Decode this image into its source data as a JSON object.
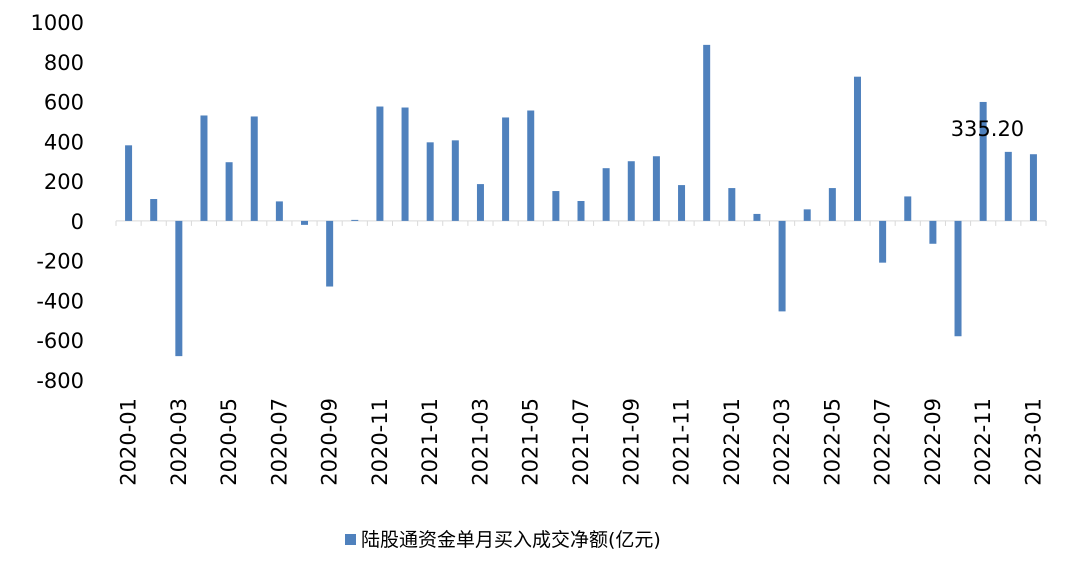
{
  "chart_data": {
    "type": "bar",
    "title": "",
    "xlabel": "",
    "ylabel": "",
    "ylim": [
      -800,
      1000
    ],
    "yticks": [
      "1000",
      "800",
      "600",
      "400",
      "200",
      "0",
      "-200",
      "-400",
      "-600",
      "-800"
    ],
    "grid": false,
    "legend_position": "bottom",
    "bar_color": "#4F81BD",
    "categories": [
      "2020-01",
      "2020-02",
      "2020-03",
      "2020-04",
      "2020-05",
      "2020-06",
      "2020-07",
      "2020-08",
      "2020-09",
      "2020-10",
      "2020-11",
      "2020-12",
      "2021-01",
      "2021-02",
      "2021-03",
      "2021-04",
      "2021-05",
      "2021-06",
      "2021-07",
      "2021-08",
      "2021-09",
      "2021-10",
      "2021-11",
      "2021-12",
      "2022-01",
      "2022-02",
      "2022-03",
      "2022-04",
      "2022-05",
      "2022-06",
      "2022-07",
      "2022-08",
      "2022-09",
      "2022-10",
      "2022-11",
      "2022-12",
      "2023-01"
    ],
    "tick_labels": [
      "2020-01",
      "2020-03",
      "2020-05",
      "2020-07",
      "2020-09",
      "2020-11",
      "2021-01",
      "2021-03",
      "2021-05",
      "2021-07",
      "2021-09",
      "2021-11",
      "2022-01",
      "2022-03",
      "2022-05",
      "2022-07",
      "2022-09",
      "2022-11",
      "2023-01"
    ],
    "series": [
      {
        "name": "陆股通资金单月买入成交净额(亿元)",
        "values": [
          380,
          110,
          -680,
          530,
          295,
          525,
          98,
          -20,
          -330,
          5,
          575,
          570,
          395,
          405,
          185,
          520,
          555,
          150,
          100,
          265,
          300,
          325,
          180,
          885,
          165,
          35,
          -455,
          58,
          165,
          725,
          -210,
          123,
          -115,
          -580,
          598,
          347,
          335.2
        ]
      }
    ],
    "annotation": {
      "text": "335.20",
      "category": "2023-01"
    }
  }
}
